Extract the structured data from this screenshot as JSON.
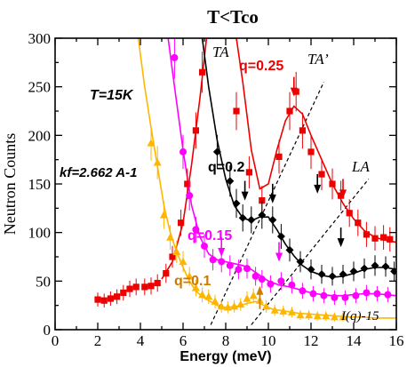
{
  "chart_data": {
    "type": "scatter",
    "title": "T<Tco",
    "xlabel": "Energy (meV)",
    "ylabel": "Neutron Counts",
    "xlim": [
      0,
      16
    ],
    "ylim": [
      0,
      300
    ],
    "xticks": [
      0,
      2,
      4,
      6,
      8,
      10,
      12,
      14,
      16
    ],
    "yticks": [
      0,
      50,
      100,
      150,
      200,
      250,
      300
    ],
    "grid": false,
    "annotations": {
      "temperature": "T=15K",
      "kf": "kf=2.662 A-1",
      "TA": "TA",
      "TA_prime": "TA’",
      "LA": "LA",
      "background": "I(q)-15"
    },
    "series": [
      {
        "name": "q=0.25",
        "color": "#ee0000",
        "marker": "square",
        "points": [
          [
            2.0,
            31
          ],
          [
            2.3,
            30
          ],
          [
            2.6,
            32
          ],
          [
            2.9,
            34
          ],
          [
            3.2,
            38
          ],
          [
            3.5,
            42
          ],
          [
            3.8,
            44
          ],
          [
            4.2,
            44
          ],
          [
            4.5,
            45
          ],
          [
            4.8,
            48
          ],
          [
            5.2,
            58
          ],
          [
            5.5,
            75
          ],
          [
            5.9,
            110
          ],
          [
            6.2,
            150
          ],
          [
            6.6,
            205
          ],
          [
            6.9,
            265
          ],
          [
            8.5,
            225
          ],
          [
            9.1,
            162
          ],
          [
            9.7,
            133
          ],
          [
            10.5,
            178
          ],
          [
            11.0,
            225
          ],
          [
            11.3,
            245
          ],
          [
            11.6,
            205
          ],
          [
            12.0,
            183
          ],
          [
            12.5,
            160
          ],
          [
            13.0,
            150
          ],
          [
            13.4,
            138
          ],
          [
            13.8,
            120
          ],
          [
            14.2,
            110
          ],
          [
            14.6,
            98
          ],
          [
            15.0,
            94
          ],
          [
            15.4,
            95
          ],
          [
            15.7,
            93
          ]
        ],
        "fit": [
          [
            5.0,
            52
          ],
          [
            5.5,
            70
          ],
          [
            6.0,
            110
          ],
          [
            6.4,
            170
          ],
          [
            6.8,
            240
          ],
          [
            7.1,
            300
          ],
          [
            8.5,
            300
          ],
          [
            8.8,
            255
          ],
          [
            9.2,
            185
          ],
          [
            9.6,
            145
          ],
          [
            10.0,
            150
          ],
          [
            10.4,
            185
          ],
          [
            10.8,
            215
          ],
          [
            11.2,
            230
          ],
          [
            11.6,
            222
          ],
          [
            12.0,
            200
          ],
          [
            12.5,
            175
          ],
          [
            13.0,
            150
          ],
          [
            13.5,
            130
          ],
          [
            14.0,
            114
          ],
          [
            14.5,
            102
          ],
          [
            15.0,
            95
          ],
          [
            15.5,
            92
          ],
          [
            16.0,
            90
          ]
        ]
      },
      {
        "name": "q=0.2",
        "color": "#000000",
        "marker": "diamond",
        "points": [
          [
            7.6,
            183
          ],
          [
            8.2,
            153
          ],
          [
            8.5,
            130
          ],
          [
            8.8,
            115
          ],
          [
            9.2,
            113
          ],
          [
            9.7,
            118
          ],
          [
            10.2,
            113
          ],
          [
            10.6,
            96
          ],
          [
            11.0,
            82
          ],
          [
            11.5,
            70
          ],
          [
            12.0,
            62
          ],
          [
            12.5,
            57
          ],
          [
            13.0,
            55
          ],
          [
            13.5,
            57
          ],
          [
            14.0,
            60
          ],
          [
            14.5,
            63
          ],
          [
            15.0,
            66
          ],
          [
            15.5,
            65
          ],
          [
            15.9,
            60
          ]
        ],
        "fit": [
          [
            6.9,
            300
          ],
          [
            7.2,
            250
          ],
          [
            7.6,
            195
          ],
          [
            8.0,
            155
          ],
          [
            8.4,
            128
          ],
          [
            8.8,
            115
          ],
          [
            9.2,
            112
          ],
          [
            9.6,
            116
          ],
          [
            10.0,
            116
          ],
          [
            10.4,
            103
          ],
          [
            10.8,
            88
          ],
          [
            11.2,
            76
          ],
          [
            11.6,
            66
          ],
          [
            12.0,
            60
          ],
          [
            12.5,
            56
          ],
          [
            13.0,
            54
          ],
          [
            13.5,
            55
          ],
          [
            14.0,
            58
          ],
          [
            14.5,
            62
          ],
          [
            15.0,
            64
          ],
          [
            15.5,
            64
          ],
          [
            16.0,
            62
          ]
        ]
      },
      {
        "name": "q=0.15",
        "color": "#ff00ff",
        "marker": "circle",
        "points": [
          [
            5.6,
            280
          ],
          [
            6.0,
            183
          ],
          [
            6.3,
            138
          ],
          [
            6.6,
            103
          ],
          [
            7.0,
            86
          ],
          [
            7.4,
            72
          ],
          [
            7.8,
            70
          ],
          [
            8.2,
            66
          ],
          [
            8.6,
            62
          ],
          [
            9.0,
            63
          ],
          [
            9.4,
            55
          ],
          [
            9.7,
            52
          ],
          [
            10.1,
            47
          ],
          [
            10.6,
            50
          ],
          [
            11.1,
            46
          ],
          [
            11.6,
            40
          ],
          [
            12.1,
            37
          ],
          [
            12.6,
            35
          ],
          [
            13.1,
            33
          ],
          [
            13.6,
            33
          ],
          [
            14.1,
            35
          ],
          [
            14.6,
            38
          ],
          [
            15.1,
            37
          ],
          [
            15.6,
            36
          ]
        ],
        "fit": [
          [
            5.3,
            300
          ],
          [
            5.6,
            250
          ],
          [
            6.0,
            185
          ],
          [
            6.4,
            128
          ],
          [
            6.8,
            95
          ],
          [
            7.2,
            78
          ],
          [
            7.6,
            72
          ],
          [
            8.0,
            70
          ],
          [
            8.4,
            68
          ],
          [
            8.8,
            66
          ],
          [
            9.2,
            62
          ],
          [
            9.6,
            56
          ],
          [
            10.0,
            50
          ],
          [
            10.5,
            46
          ],
          [
            11.0,
            44
          ],
          [
            11.5,
            41
          ],
          [
            12.0,
            38
          ],
          [
            12.5,
            36
          ],
          [
            13.0,
            35
          ],
          [
            13.5,
            35
          ],
          [
            14.0,
            36
          ],
          [
            14.5,
            37
          ],
          [
            15.0,
            37
          ],
          [
            15.5,
            36
          ],
          [
            16.0,
            35
          ]
        ]
      },
      {
        "name": "q=0.1",
        "color": "#ffb600",
        "marker": "triangle",
        "points": [
          [
            4.5,
            192
          ],
          [
            4.8,
            172
          ],
          [
            5.1,
            118
          ],
          [
            5.4,
            95
          ],
          [
            5.7,
            80
          ],
          [
            6.0,
            70
          ],
          [
            6.3,
            55
          ],
          [
            6.6,
            43
          ],
          [
            6.9,
            36
          ],
          [
            7.2,
            34
          ],
          [
            7.5,
            29
          ],
          [
            7.8,
            24
          ],
          [
            8.1,
            23
          ],
          [
            8.4,
            24
          ],
          [
            8.7,
            26
          ],
          [
            9.0,
            32
          ],
          [
            9.3,
            35
          ],
          [
            9.6,
            30
          ],
          [
            9.9,
            24
          ],
          [
            10.3,
            20
          ],
          [
            10.7,
            19
          ],
          [
            11.1,
            18
          ],
          [
            11.5,
            15
          ],
          [
            11.9,
            15
          ],
          [
            12.3,
            14
          ],
          [
            12.7,
            14
          ],
          [
            13.1,
            13
          ],
          [
            13.5,
            13
          ]
        ],
        "fit": [
          [
            3.9,
            300
          ],
          [
            4.2,
            250
          ],
          [
            4.5,
            208
          ],
          [
            4.8,
            168
          ],
          [
            5.1,
            128
          ],
          [
            5.4,
            100
          ],
          [
            5.7,
            80
          ],
          [
            6.0,
            64
          ],
          [
            6.3,
            50
          ],
          [
            6.6,
            40
          ],
          [
            6.9,
            34
          ],
          [
            7.2,
            30
          ],
          [
            7.6,
            25
          ],
          [
            8.0,
            23
          ],
          [
            8.5,
            24
          ],
          [
            9.0,
            27
          ],
          [
            9.4,
            29
          ],
          [
            9.8,
            25
          ],
          [
            10.2,
            21
          ],
          [
            10.8,
            19
          ],
          [
            11.4,
            17
          ],
          [
            12.0,
            16
          ],
          [
            12.6,
            15
          ],
          [
            13.2,
            14
          ],
          [
            13.8,
            13
          ],
          [
            14.4,
            13
          ],
          [
            15.0,
            12
          ],
          [
            15.6,
            12
          ],
          [
            16.0,
            12
          ]
        ]
      }
    ],
    "dispersion_lines": [
      {
        "name": "TA’",
        "from": [
          7.3,
          5
        ],
        "to": [
          12.6,
          255
        ]
      },
      {
        "name": "LA",
        "from": [
          9.2,
          5
        ],
        "to": [
          14.7,
          155
        ]
      }
    ],
    "arrows": [
      {
        "color": "#ee0000",
        "tip": [
          11.2,
          240
        ]
      },
      {
        "color": "#ee0000",
        "tip": [
          13.5,
          135
        ]
      },
      {
        "color": "#000000",
        "tip": [
          8.9,
          133
        ]
      },
      {
        "color": "#000000",
        "tip": [
          10.2,
          130
        ]
      },
      {
        "color": "#000000",
        "tip": [
          12.3,
          140
        ]
      },
      {
        "color": "#000000",
        "tip": [
          13.4,
          85
        ]
      },
      {
        "color": "#ff00ff",
        "tip": [
          7.8,
          75
        ]
      },
      {
        "color": "#ff00ff",
        "tip": [
          10.5,
          70
        ]
      },
      {
        "color": "#cc7a00",
        "tip": [
          9.6,
          45
        ],
        "from_below": true
      }
    ]
  }
}
